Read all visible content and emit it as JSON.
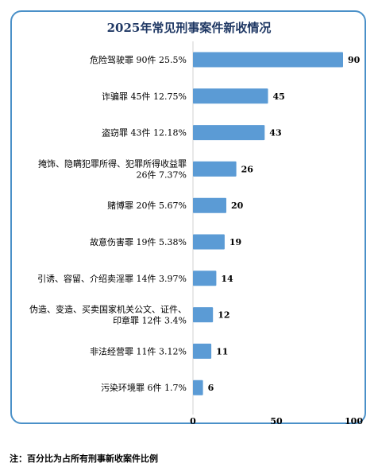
{
  "chart_data": {
    "type": "bar",
    "orientation": "horizontal",
    "title": "2025年常见刑事案件新收情况",
    "categories": [
      [
        "危险驾驶罪 90件 25.5%"
      ],
      [
        "诈骗罪 45件 12.75%"
      ],
      [
        "盗窃罪 43件 12.18%"
      ],
      [
        "掩饰、隐瞒犯罪所得、犯罪所得收益罪",
        "26件 7.37%"
      ],
      [
        "赌博罪 20件 5.67%"
      ],
      [
        "故意伤害罪 19件 5.38%"
      ],
      [
        "引诱、容留、介绍卖淫罪 14件 3.97%"
      ],
      [
        "伪造、变造、买卖国家机关公文、证件、",
        "印章罪 12件 3.4%"
      ],
      [
        "非法经营罪 11件 3.12%"
      ],
      [
        "污染环境罪 6件 1.7%"
      ]
    ],
    "values": [
      90,
      45,
      43,
      26,
      20,
      19,
      14,
      12,
      11,
      6
    ],
    "data_labels": [
      "90",
      "45",
      "43",
      "26",
      "20",
      "19",
      "14",
      "12",
      "11",
      "6"
    ],
    "xlim": [
      0,
      100
    ],
    "x_ticks": [
      "0",
      "50",
      "100"
    ],
    "grid": false,
    "bar_color": "#5b9bd5",
    "frame_color": "#4a90c8",
    "title_color": "#1f3864"
  },
  "footnote": "注：百分比为占所有刑事新收案件比例"
}
